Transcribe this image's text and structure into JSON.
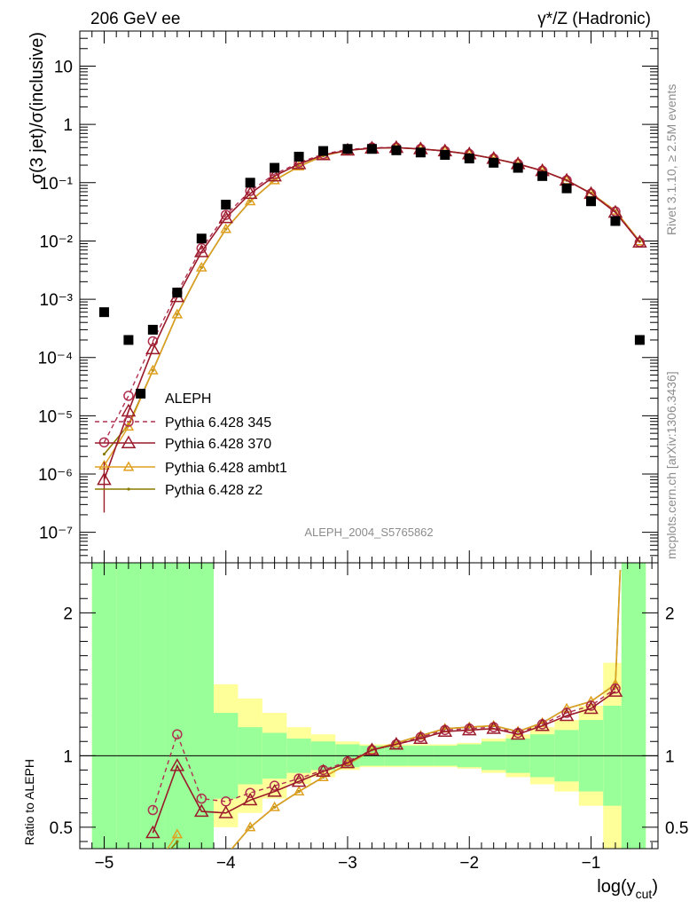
{
  "header": {
    "left": "206 GeV ee",
    "right": "γ*/Z (Hadronic)"
  },
  "side": {
    "rivet": "Rivet 3.1.10, ≥ 2.5M events",
    "mcplots": "mcplots.cern.ch [arXiv:1306.3436]"
  },
  "analysis_id": "ALEPH_2004_S5765862",
  "colors": {
    "data": "#000000",
    "p345": "#b03050",
    "p370": "#9a1a2a",
    "ambt1": "#e0a020",
    "z2": "#8a7a00",
    "band_inner": "#99ff99",
    "band_outer": "#ffff99"
  },
  "chart_data": [
    {
      "type": "scatter",
      "panel": "main",
      "ylabel": "σ(3 jet)/σ(inclusive)",
      "yscale": "log",
      "ylim": [
        3e-08,
        40
      ],
      "xlim": [
        -5.2,
        -0.45
      ],
      "y_ticklabels": [
        "10⁻⁷",
        "10⁻⁶",
        "10⁻⁵",
        "10⁻⁴",
        "10⁻³",
        "10⁻²",
        "10⁻¹",
        "1",
        "10"
      ],
      "legend": {
        "placement": "lower-left",
        "entries": [
          "ALEPH",
          "Pythia 6.428 345",
          "Pythia 6.428 370",
          "Pythia 6.428 ambt1",
          "Pythia 6.428 z2"
        ]
      },
      "x": [
        -5.0,
        -4.8,
        -4.7,
        -4.6,
        -4.4,
        -4.2,
        -4.0,
        -3.8,
        -3.6,
        -3.4,
        -3.2,
        -3.0,
        -2.8,
        -2.6,
        -2.4,
        -2.2,
        -2.0,
        -1.8,
        -1.6,
        -1.4,
        -1.2,
        -1.0,
        -0.8,
        -0.6
      ],
      "series": [
        {
          "name": "ALEPH",
          "values": [
            0.0006,
            0.0002,
            2.4e-05,
            0.0003,
            0.0013,
            0.011,
            0.042,
            0.1,
            0.18,
            0.28,
            0.35,
            0.38,
            0.38,
            0.36,
            0.33,
            0.3,
            0.26,
            0.22,
            0.18,
            0.13,
            0.08,
            0.048,
            0.022,
            0.0002
          ]
        },
        {
          "name": "Pythia 6.428 345",
          "values": [
            3.5e-06,
            2.2e-05,
            null,
            0.00019,
            0.0013,
            0.0075,
            0.028,
            0.072,
            0.14,
            0.22,
            0.31,
            0.37,
            0.4,
            0.4,
            0.38,
            0.35,
            0.31,
            0.26,
            0.21,
            0.16,
            0.11,
            0.065,
            0.032,
            0.0095
          ]
        },
        {
          "name": "Pythia 6.428 370",
          "values": [
            8e-07,
            1.2e-05,
            null,
            0.00014,
            0.0011,
            0.0065,
            0.025,
            0.065,
            0.13,
            0.21,
            0.3,
            0.36,
            0.39,
            0.4,
            0.38,
            0.35,
            0.31,
            0.26,
            0.21,
            0.16,
            0.11,
            0.065,
            0.031,
            0.0095
          ]
        },
        {
          "name": "Pythia 6.428 ambt1",
          "values": [
            1.4e-06,
            6.5e-06,
            null,
            6e-05,
            0.00055,
            0.0035,
            0.016,
            0.048,
            0.11,
            0.19,
            0.29,
            0.36,
            0.39,
            0.4,
            0.38,
            0.35,
            0.31,
            0.26,
            0.21,
            0.16,
            0.11,
            0.066,
            0.033,
            0.0098
          ]
        },
        {
          "name": "Pythia 6.428 z2",
          "values": [
            2.2e-06,
            7e-06,
            null,
            6e-05,
            0.00055,
            0.0035,
            0.016,
            0.048,
            0.11,
            0.19,
            0.29,
            0.36,
            0.39,
            0.4,
            0.38,
            0.35,
            0.31,
            0.26,
            0.21,
            0.16,
            0.11,
            0.066,
            0.033,
            0.0098
          ]
        }
      ]
    },
    {
      "type": "line",
      "panel": "ratio",
      "ylabel": "Ratio to ALEPH",
      "xlabel": "log(y_cut)",
      "ylim": [
        0.35,
        2.35
      ],
      "xlim": [
        -5.2,
        -0.45
      ],
      "x_ticklabels": [
        "−5",
        "−4",
        "−3",
        "−2",
        "−1"
      ],
      "y_ticklabels": [
        "0.5",
        "1",
        "2"
      ],
      "bands": {
        "edges": [
          -5.1,
          -4.9,
          -4.7,
          -4.5,
          -4.3,
          -4.1,
          -3.9,
          -3.7,
          -3.5,
          -3.3,
          -3.1,
          -2.9,
          -2.7,
          -2.5,
          -2.3,
          -2.1,
          -1.9,
          -1.7,
          -1.5,
          -1.3,
          -1.1,
          -0.9,
          -0.75,
          -0.55
        ],
        "inner_lo": [
          0.35,
          0.35,
          0.35,
          0.35,
          0.35,
          0.7,
          0.8,
          0.84,
          0.88,
          0.9,
          0.92,
          0.93,
          0.93,
          0.93,
          0.93,
          0.92,
          0.9,
          0.88,
          0.85,
          0.82,
          0.75,
          0.65,
          0.35
        ],
        "inner_hi": [
          2.35,
          2.35,
          2.35,
          2.35,
          2.35,
          1.3,
          1.2,
          1.16,
          1.12,
          1.1,
          1.08,
          1.07,
          1.07,
          1.07,
          1.07,
          1.08,
          1.1,
          1.12,
          1.15,
          1.18,
          1.25,
          1.35,
          2.35
        ],
        "outer_lo": [
          0.35,
          0.35,
          0.35,
          0.35,
          0.35,
          0.5,
          0.6,
          0.7,
          0.8,
          0.85,
          0.9,
          0.92,
          0.92,
          0.92,
          0.92,
          0.91,
          0.88,
          0.85,
          0.8,
          0.75,
          0.65,
          0.35,
          0.35
        ],
        "outer_hi": [
          2.35,
          2.35,
          2.35,
          2.35,
          2.25,
          1.5,
          1.4,
          1.3,
          1.2,
          1.15,
          1.1,
          1.08,
          1.08,
          1.08,
          1.08,
          1.09,
          1.12,
          1.15,
          1.2,
          1.25,
          1.35,
          1.65,
          2.35
        ]
      },
      "x": [
        -5.0,
        -4.8,
        -4.6,
        -4.4,
        -4.2,
        -4.0,
        -3.8,
        -3.6,
        -3.4,
        -3.2,
        -3.0,
        -2.8,
        -2.6,
        -2.4,
        -2.2,
        -2.0,
        -1.8,
        -1.6,
        -1.4,
        -1.2,
        -1.0,
        -0.8,
        -0.76
      ],
      "series": [
        {
          "name": "Pythia 6.428 345",
          "values": [
            null,
            null,
            0.62,
            1.15,
            0.7,
            0.68,
            0.74,
            0.79,
            0.84,
            0.9,
            0.96,
            1.04,
            1.08,
            1.13,
            1.18,
            1.19,
            1.2,
            1.16,
            1.22,
            1.3,
            1.35,
            1.47,
            null
          ]
        },
        {
          "name": "Pythia 6.428 370",
          "values": [
            null,
            null,
            0.46,
            0.93,
            0.61,
            0.6,
            0.69,
            0.75,
            0.82,
            0.89,
            0.95,
            1.04,
            1.08,
            1.12,
            1.17,
            1.18,
            1.19,
            1.15,
            1.21,
            1.28,
            1.33,
            1.45,
            null
          ]
        },
        {
          "name": "Pythia 6.428 ambt1",
          "values": [
            null,
            null,
            0.2,
            0.45,
            null,
            0.3,
            0.5,
            0.64,
            0.75,
            0.85,
            0.94,
            1.04,
            1.09,
            1.14,
            1.19,
            1.2,
            1.21,
            1.17,
            1.23,
            1.33,
            1.38,
            1.5,
            2.3
          ]
        },
        {
          "name": "Pythia 6.428 z2",
          "values": [
            null,
            null,
            0.2,
            0.4,
            null,
            0.3,
            0.5,
            0.64,
            0.75,
            0.85,
            0.94,
            1.04,
            1.09,
            1.14,
            1.19,
            1.2,
            1.21,
            1.17,
            1.23,
            1.33,
            1.38,
            1.5,
            2.3
          ]
        }
      ]
    }
  ]
}
